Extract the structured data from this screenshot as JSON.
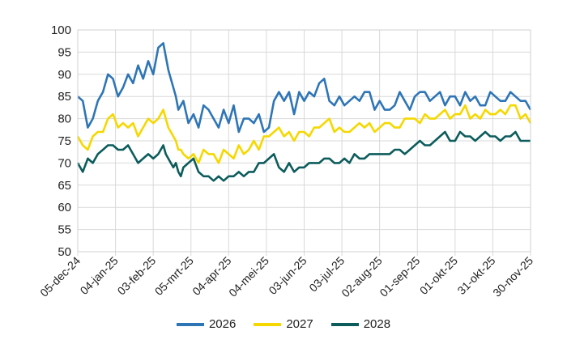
{
  "chart_data": {
    "type": "line",
    "title": "",
    "xlabel": "",
    "ylabel": "",
    "ylim": [
      50,
      100
    ],
    "yticks": [
      50,
      55,
      60,
      65,
      70,
      75,
      80,
      85,
      90,
      95,
      100
    ],
    "x_tick_labels": [
      "05-dec-24",
      "04-jan-25",
      "03-feb-25",
      "05-mrt-25",
      "04-apr-25",
      "04-mei-25",
      "03-jun-25",
      "03-jul-25",
      "02-aug-25",
      "01-sep-25",
      "01-okt-25",
      "31-okt-25",
      "30-nov-25"
    ],
    "x_day_offsets": [
      0,
      30,
      60,
      90,
      120,
      150,
      180,
      210,
      240,
      270,
      300,
      330,
      360
    ],
    "grid": true,
    "legend_position": "bottom",
    "series": [
      {
        "name": "2026",
        "color": "#2E75B6",
        "x": [
          0,
          4,
          8,
          12,
          16,
          20,
          24,
          28,
          32,
          36,
          40,
          44,
          48,
          52,
          56,
          60,
          64,
          68,
          70,
          72,
          74,
          76,
          78,
          80,
          82,
          84,
          88,
          92,
          96,
          100,
          104,
          108,
          112,
          116,
          120,
          124,
          128,
          132,
          136,
          140,
          144,
          148,
          152,
          156,
          160,
          164,
          168,
          172,
          176,
          180,
          184,
          188,
          192,
          196,
          200,
          204,
          208,
          212,
          216,
          220,
          224,
          228,
          232,
          236,
          240,
          244,
          248,
          252,
          256,
          260,
          264,
          268,
          272,
          276,
          280,
          284,
          288,
          292,
          296,
          300,
          304,
          308,
          312,
          316,
          320,
          324,
          328,
          332,
          336,
          340,
          344,
          348,
          352,
          356,
          360
        ],
        "values": [
          85,
          84,
          78,
          80,
          84,
          86,
          90,
          89,
          85,
          87,
          90,
          88,
          92,
          89,
          93,
          90,
          96,
          97,
          94,
          91,
          89,
          87,
          85,
          82,
          83,
          84,
          79,
          81,
          78,
          83,
          82,
          80,
          78,
          82,
          79,
          83,
          77,
          80,
          80,
          79,
          81,
          77,
          78,
          84,
          86,
          84,
          86,
          81,
          86,
          84,
          86,
          85,
          88,
          89,
          84,
          83,
          85,
          83,
          84,
          85,
          84,
          86,
          86,
          82,
          84,
          82,
          82,
          83,
          86,
          84,
          82,
          85,
          86,
          86,
          84,
          85,
          86,
          83,
          85,
          85,
          83,
          86,
          84,
          85,
          83,
          83,
          86,
          85,
          84,
          84,
          86,
          85,
          84,
          84,
          82
        ]
      },
      {
        "name": "2027",
        "color": "#F5D800",
        "x": [
          0,
          4,
          8,
          12,
          16,
          20,
          24,
          28,
          32,
          36,
          40,
          44,
          48,
          52,
          56,
          60,
          64,
          68,
          70,
          72,
          74,
          76,
          78,
          80,
          82,
          84,
          88,
          92,
          96,
          100,
          104,
          108,
          112,
          116,
          120,
          124,
          128,
          132,
          136,
          140,
          144,
          148,
          152,
          156,
          160,
          164,
          168,
          172,
          176,
          180,
          184,
          188,
          192,
          196,
          200,
          204,
          208,
          212,
          216,
          220,
          224,
          228,
          232,
          236,
          240,
          244,
          248,
          252,
          256,
          260,
          264,
          268,
          272,
          276,
          280,
          284,
          288,
          292,
          296,
          300,
          304,
          308,
          312,
          316,
          320,
          324,
          328,
          332,
          336,
          340,
          344,
          348,
          352,
          356,
          360
        ],
        "values": [
          76,
          74,
          73,
          76,
          77,
          77,
          80,
          81,
          78,
          79,
          78,
          79,
          76,
          78,
          80,
          79,
          80,
          82,
          80,
          78,
          77,
          76,
          75,
          73,
          73,
          72,
          71,
          72,
          70,
          73,
          72,
          72,
          70,
          73,
          72,
          71,
          74,
          72,
          73,
          75,
          73,
          76,
          76,
          77,
          78,
          76,
          77,
          75,
          77,
          77,
          76,
          78,
          78,
          79,
          80,
          77,
          78,
          77,
          77,
          78,
          79,
          78,
          79,
          77,
          78,
          79,
          79,
          78,
          78,
          80,
          80,
          80,
          79,
          81,
          80,
          80,
          81,
          82,
          80,
          81,
          81,
          83,
          80,
          81,
          80,
          82,
          81,
          81,
          82,
          81,
          83,
          83,
          80,
          81,
          79
        ]
      },
      {
        "name": "2028",
        "color": "#0D5C5C",
        "x": [
          0,
          4,
          8,
          12,
          16,
          20,
          24,
          28,
          32,
          36,
          40,
          44,
          48,
          52,
          56,
          60,
          64,
          68,
          70,
          72,
          74,
          76,
          78,
          80,
          82,
          84,
          88,
          92,
          96,
          100,
          104,
          108,
          112,
          116,
          120,
          124,
          128,
          132,
          136,
          140,
          144,
          148,
          152,
          156,
          160,
          164,
          168,
          172,
          176,
          180,
          184,
          188,
          192,
          196,
          200,
          204,
          208,
          212,
          216,
          220,
          224,
          228,
          232,
          236,
          240,
          244,
          248,
          252,
          256,
          260,
          264,
          268,
          272,
          276,
          280,
          284,
          288,
          292,
          296,
          300,
          304,
          308,
          312,
          316,
          320,
          324,
          328,
          332,
          336,
          340,
          344,
          348,
          352,
          356,
          360
        ],
        "values": [
          70,
          68,
          71,
          70,
          72,
          73,
          74,
          74,
          73,
          73,
          74,
          72,
          70,
          71,
          72,
          71,
          72,
          74,
          72,
          71,
          70,
          69,
          70,
          68,
          67,
          69,
          70,
          71,
          68,
          67,
          67,
          66,
          67,
          66,
          67,
          67,
          68,
          67,
          68,
          68,
          70,
          70,
          71,
          72,
          69,
          68,
          70,
          68,
          69,
          69,
          70,
          70,
          70,
          71,
          71,
          70,
          70,
          71,
          70,
          72,
          71,
          71,
          72,
          72,
          72,
          72,
          72,
          73,
          73,
          72,
          73,
          74,
          75,
          74,
          74,
          75,
          76,
          77,
          75,
          75,
          77,
          76,
          76,
          75,
          76,
          77,
          76,
          76,
          75,
          76,
          76,
          77,
          75,
          75,
          75
        ]
      }
    ]
  }
}
